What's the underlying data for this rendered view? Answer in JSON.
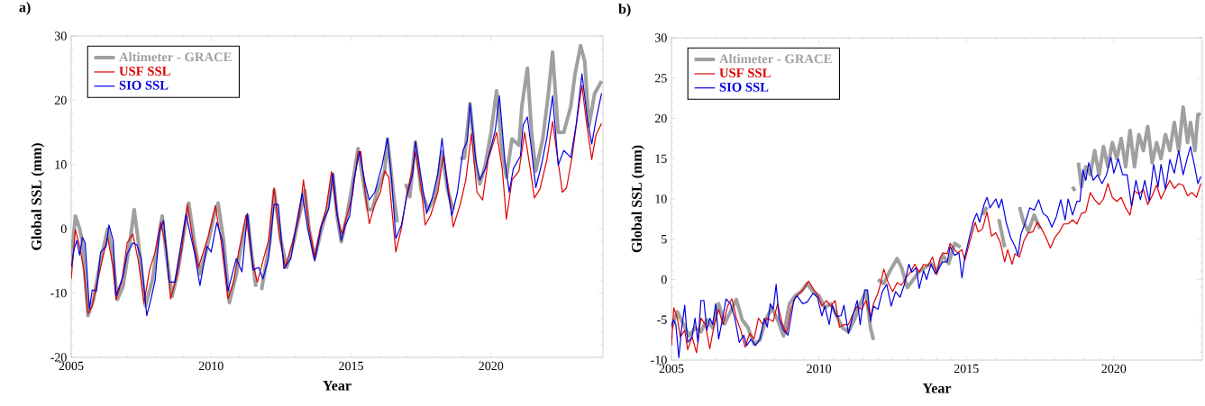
{
  "chart_data": [
    {
      "type": "line",
      "title": "a)",
      "xlabel": "Year",
      "ylabel": "Global SSL (mm)",
      "xlim": [
        2005,
        2024
      ],
      "ylim": [
        -20,
        30
      ],
      "xticks": [
        2005,
        2010,
        2015,
        2020
      ],
      "yticks": [
        -20,
        -10,
        0,
        10,
        20,
        30
      ],
      "legend": "top left",
      "series": [
        {
          "name": "Altimeter - GRACE",
          "color": "#a0a0a0",
          "x": [
            2005.0,
            2005.15,
            2005.3,
            2005.4,
            2005.6,
            2005.8,
            2006.0,
            2006.3,
            2006.45,
            2006.65,
            2006.85,
            2007.1,
            2007.25,
            2007.4,
            2007.65,
            2007.9,
            2008.1,
            2008.25,
            2008.4,
            2008.6,
            2008.8,
            2009.05,
            2009.2,
            2009.4,
            2009.6,
            2009.85,
            2010.1,
            2010.25,
            2010.45,
            2010.65,
            2010.9,
            2011.15,
            2011.3,
            2011.45,
            2011.6,
            2011.7,
            2011.8,
            2011.9,
            2012.1,
            2012.25,
            2012.5,
            2012.7,
            2012.95,
            2013.2,
            2013.35,
            2013.5,
            2013.7,
            2013.95,
            2014.2,
            2014.35,
            2014.5,
            2014.65,
            2014.85,
            2015.05,
            2015.25,
            2015.45,
            2015.6,
            2015.75,
            2015.95,
            2016.2,
            2016.3,
            2016.5,
            2016.65,
            2016.8,
            2016.95,
            2017.1,
            2017.3,
            2017.5,
            2017.75,
            2018.0,
            2018.25,
            2018.45,
            2018.65,
            2018.75,
            2018.9,
            2019.05,
            2019.25,
            2019.45,
            2019.6,
            2019.8,
            2020.0,
            2020.2,
            2020.4,
            2020.55,
            2020.75,
            2021.0,
            2021.1,
            2021.3,
            2021.45,
            2021.6,
            2021.85,
            2022.05,
            2022.2,
            2022.4,
            2022.6,
            2022.85,
            2023.0,
            2023.2,
            2023.35,
            2023.5,
            2023.7,
            2023.95
          ],
          "values": [
            -5,
            2,
            0,
            -2,
            -13.5,
            -11,
            -6,
            0,
            -3,
            -11,
            -9,
            -2,
            3,
            -2,
            -12,
            -8,
            -2,
            2,
            -4,
            -10.5,
            -7,
            0,
            4,
            -2,
            -7,
            -3,
            2,
            4,
            -2,
            -11.5,
            -7,
            -1,
            2,
            -4,
            -9,
            null,
            -9.5,
            -7,
            -2,
            6,
            -2,
            -6,
            -2,
            3,
            6,
            0,
            -4.5,
            0,
            4,
            8.5,
            2,
            -2,
            2,
            7,
            12.5,
            7,
            3,
            3,
            6,
            9,
            14,
            6,
            1,
            null,
            7,
            5,
            13.5,
            6,
            3,
            5,
            12,
            6,
            3,
            null,
            11,
            11,
            19.5,
            10,
            7,
            10,
            15,
            21.5,
            12,
            8,
            14,
            13,
            19,
            25,
            15,
            9,
            14,
            21,
            27.5,
            15,
            15,
            19,
            24,
            28.5,
            26,
            16,
            21,
            23
          ]
        },
        {
          "name": "USF SSL",
          "color": "#e00000",
          "x": [
            2005.0,
            2005.15,
            2005.3,
            2005.45,
            2005.6,
            2005.75,
            2005.9,
            2006.1,
            2006.3,
            2006.5,
            2006.6,
            2006.8,
            2007.0,
            2007.2,
            2007.4,
            2007.6,
            2007.8,
            2008.0,
            2008.2,
            2008.4,
            2008.55,
            2008.75,
            2008.95,
            2009.15,
            2009.35,
            2009.55,
            2009.75,
            2009.9,
            2010.15,
            2010.35,
            2010.6,
            2010.8,
            2011.0,
            2011.25,
            2011.45,
            2011.65,
            2011.85,
            2012.05,
            2012.25,
            2012.45,
            2012.65,
            2012.9,
            2013.15,
            2013.3,
            2013.5,
            2013.7,
            2013.9,
            2014.1,
            2014.3,
            2014.5,
            2014.68,
            2014.85,
            2015.05,
            2015.25,
            2015.35,
            2015.5,
            2015.65,
            2015.85,
            2016.05,
            2016.2,
            2016.35,
            2016.6,
            2016.8,
            2017.0,
            2017.15,
            2017.3,
            2017.5,
            2017.65,
            2017.85,
            2018.1,
            2018.3,
            2018.5,
            2018.65,
            2018.9,
            2019.1,
            2019.3,
            2019.5,
            2019.7,
            2019.9,
            2020.2,
            2020.4,
            2020.55,
            2020.75,
            2021.0,
            2021.2,
            2021.4,
            2021.55,
            2021.75,
            2022.0,
            2022.2,
            2022.4,
            2022.55,
            2022.7,
            2022.9,
            2023.1,
            2023.25,
            2023.4,
            2023.6,
            2023.75,
            2023.95
          ],
          "values": [
            -7.8,
            -0.1,
            -2.7,
            -6.4,
            -13.2,
            -12,
            -8.8,
            -5,
            -1.3,
            -6,
            -11,
            -8.3,
            -2.2,
            -0.8,
            -5,
            -11.6,
            -6.4,
            -3.6,
            1,
            -3.2,
            -10.9,
            -7.8,
            -3.2,
            3.8,
            -1.8,
            -6,
            -3.2,
            -1.1,
            3.6,
            -1.8,
            -10.9,
            -8.3,
            -3.2,
            2.2,
            -4.6,
            -8.3,
            -5,
            -1.8,
            6.4,
            -1.3,
            -6,
            -2.2,
            2,
            7.6,
            0.1,
            -4.3,
            0.1,
            2.9,
            8.9,
            2,
            -0.8,
            2,
            5.2,
            12,
            12,
            5.7,
            0.8,
            3.8,
            5.7,
            9,
            8,
            -3.6,
            0.1,
            5.7,
            8.5,
            12,
            6.6,
            0.6,
            2.2,
            5.7,
            11.5,
            5.7,
            0.3,
            3.8,
            7.6,
            14.8,
            5.7,
            4.5,
            10.8,
            15,
            9.4,
            1.5,
            7.6,
            9,
            15,
            9.4,
            4.8,
            6.2,
            10.8,
            16.7,
            10.4,
            5.7,
            6.4,
            11.3,
            17.9,
            22.3,
            16.9,
            10.8,
            14.6,
            16.4
          ]
        },
        {
          "name": "SIO SSL",
          "color": "#0000e0",
          "x": [
            2005.0,
            2005.1,
            2005.2,
            2005.3,
            2005.4,
            2005.5,
            2005.65,
            2005.75,
            2005.9,
            2006.05,
            2006.25,
            2006.35,
            2006.5,
            2006.6,
            2006.85,
            2007.0,
            2007.2,
            2007.35,
            2007.5,
            2007.7,
            2007.85,
            2008.0,
            2008.15,
            2008.3,
            2008.5,
            2008.7,
            2008.95,
            2009.1,
            2009.4,
            2009.6,
            2009.85,
            2010.0,
            2010.2,
            2010.4,
            2010.6,
            2010.9,
            2011.1,
            2011.3,
            2011.5,
            2011.7,
            2011.85,
            2012.05,
            2012.25,
            2012.4,
            2012.6,
            2012.85,
            2013.1,
            2013.25,
            2013.45,
            2013.7,
            2013.95,
            2014.2,
            2014.35,
            2014.5,
            2014.65,
            2014.8,
            2014.95,
            2015.1,
            2015.3,
            2015.5,
            2015.65,
            2015.85,
            2016.1,
            2016.3,
            2016.45,
            2016.6,
            2016.8,
            2017.0,
            2017.2,
            2017.3,
            2017.55,
            2017.7,
            2017.9,
            2018.1,
            2018.25,
            2018.45,
            2018.6,
            2018.8,
            2019.0,
            2019.15,
            2019.25,
            2019.45,
            2019.6,
            2019.8,
            2020.0,
            2020.15,
            2020.3,
            2020.5,
            2020.65,
            2020.8,
            2021.05,
            2021.15,
            2021.3,
            2021.45,
            2021.6,
            2021.8,
            2022.0,
            2022.2,
            2022.4,
            2022.6,
            2022.85,
            2023.05,
            2023.25,
            2023.45,
            2023.6,
            2023.75,
            2023.95
          ],
          "values": [
            -6,
            -3.2,
            -1.8,
            -4.1,
            -1.3,
            -2.2,
            -12.5,
            -9.5,
            -9.7,
            -3.6,
            -2.7,
            0.6,
            -1.8,
            -10.4,
            -7.4,
            -3.9,
            -2.2,
            -2.5,
            -4.6,
            -13.5,
            -10.9,
            -8,
            -0.4,
            1.3,
            -8.3,
            -8.3,
            -1.8,
            2.2,
            -3.6,
            -8.8,
            -2.7,
            -3.6,
            1,
            -1.8,
            -9.7,
            -4.6,
            -6.7,
            2.4,
            -6.4,
            -6,
            -7.8,
            -4.6,
            3.8,
            3.8,
            -6.2,
            -4.6,
            2,
            5.5,
            0.1,
            -5,
            0.6,
            3.1,
            8.6,
            2.4,
            -1.8,
            0.6,
            2,
            7.6,
            12,
            7.1,
            4.5,
            5.7,
            9.7,
            14.1,
            7.6,
            -1.5,
            0.6,
            5.2,
            8.5,
            13.6,
            6.6,
            2.4,
            4.8,
            8.5,
            14.1,
            6.2,
            2,
            5.7,
            12.2,
            13.6,
            19.5,
            10.8,
            7.6,
            9.4,
            12.7,
            15.3,
            20.7,
            10.4,
            5.7,
            9.4,
            11.3,
            16.2,
            17.4,
            12.2,
            6.4,
            9.9,
            14.3,
            20.7,
            9.9,
            12.2,
            11.1,
            16.4,
            24.1,
            16.9,
            13.2,
            16.9,
            21.1
          ]
        }
      ]
    },
    {
      "type": "line",
      "title": "b)",
      "xlabel": "Year",
      "ylabel": "Global SSL (mm)",
      "xlim": [
        2005,
        2023
      ],
      "ylim": [
        -10,
        30
      ],
      "xticks": [
        2005,
        2010,
        2015,
        2020
      ],
      "yticks": [
        -10,
        -5,
        0,
        5,
        10,
        15,
        20,
        25,
        30
      ],
      "legend": "top left",
      "series": [
        {
          "name": "Altimeter - GRACE",
          "color": "#a0a0a0",
          "x": [
            2005.0,
            2005.2,
            2005.4,
            2005.6,
            2005.8,
            2006.0,
            2006.2,
            2006.4,
            2006.6,
            2006.8,
            2007.0,
            2007.2,
            2007.4,
            2007.6,
            2007.8,
            2008.0,
            2008.2,
            2008.4,
            2008.6,
            2008.8,
            2009.0,
            2009.2,
            2009.4,
            2009.6,
            2009.8,
            2010.0,
            2010.2,
            2010.4,
            2010.6,
            2010.8,
            2011.0,
            2011.2,
            2011.4,
            2011.6,
            2011.75,
            2011.85,
            2011.92,
            2012.0,
            2012.2,
            2012.4,
            2012.65,
            2012.8,
            2013.0,
            2013.2,
            2013.4,
            2013.6,
            2013.8,
            2014.0,
            2014.2,
            2014.4,
            2014.6,
            2014.8,
            2015.2,
            2015.55,
            2015.7,
            2015.9,
            2016.1,
            2016.3,
            2016.5,
            2016.8,
            2016.95,
            2017.1,
            2017.3,
            2017.5,
            2017.6,
            2018.6,
            2018.68,
            2018.74,
            2018.8,
            2018.9,
            2019.05,
            2019.2,
            2019.35,
            2019.5,
            2019.65,
            2019.8,
            2019.95,
            2020.1,
            2020.25,
            2020.4,
            2020.55,
            2020.7,
            2020.85,
            2021.0,
            2021.15,
            2021.3,
            2021.45,
            2021.6,
            2021.75,
            2021.9,
            2022.05,
            2022.2,
            2022.35,
            2022.5,
            2022.6,
            2022.75,
            2022.85,
            2022.95
          ],
          "values": [
            -6,
            -4,
            -5.5,
            -7,
            -6,
            -6.5,
            -5,
            -6,
            -3,
            -5.5,
            -4,
            -2.5,
            -5,
            -6,
            -8,
            -7.5,
            -5,
            -3.5,
            -5,
            -7,
            -3,
            -2,
            -1.5,
            -0.5,
            -1.5,
            -2,
            -3.5,
            -3,
            -4.5,
            -6,
            -6.5,
            -5,
            -3,
            -1.5,
            -6,
            -7.5,
            null,
            0,
            -0.5,
            1,
            2.6,
            1.5,
            -1,
            0,
            1,
            1.5,
            2,
            1,
            3,
            2,
            4.5,
            4,
            null,
            8,
            9,
            null,
            7.5,
            4,
            null,
            9,
            7,
            6,
            8,
            6.3,
            null,
            11.5,
            11,
            null,
            14.5,
            11.5,
            14,
            13,
            16,
            13,
            16.5,
            14,
            17,
            15,
            17.5,
            14,
            18.5,
            14,
            18,
            16,
            19,
            14.5,
            17,
            15,
            18,
            16,
            19.5,
            16,
            21.4,
            17,
            19.5,
            16,
            20.5,
            20.5
          ]
        },
        {
          "name": "USF SSL",
          "color": "#e00000",
          "x": [
            2005.0,
            2005.08,
            2005.2,
            2005.3,
            2005.45,
            2005.55,
            2005.7,
            2005.85,
            2006.0,
            2006.15,
            2006.3,
            2006.45,
            2006.6,
            2006.75,
            2006.9,
            2007.05,
            2007.2,
            2007.35,
            2007.5,
            2007.65,
            2007.8,
            2007.95,
            2008.1,
            2008.25,
            2008.45,
            2008.6,
            2008.75,
            2008.9,
            2009.05,
            2009.2,
            2009.35,
            2009.5,
            2009.65,
            2009.8,
            2009.95,
            2010.1,
            2010.25,
            2010.4,
            2010.55,
            2010.7,
            2010.85,
            2011.0,
            2011.15,
            2011.3,
            2011.45,
            2011.6,
            2011.75,
            2011.85,
            2012.0,
            2012.1,
            2012.2,
            2012.35,
            2012.5,
            2012.65,
            2012.8,
            2012.95,
            2013.1,
            2013.25,
            2013.4,
            2013.55,
            2013.7,
            2013.85,
            2014.0,
            2014.1,
            2014.2,
            2014.35,
            2014.45,
            2014.6,
            2014.7,
            2014.85,
            2014.95,
            2015.1,
            2015.3,
            2015.4,
            2015.55,
            2015.7,
            2015.85,
            2016.0,
            2016.15,
            2016.3,
            2016.4,
            2016.55,
            2016.65,
            2016.8,
            2016.95,
            2017.1,
            2017.25,
            2017.4,
            2017.55,
            2017.7,
            2017.85,
            2018.0,
            2018.15,
            2018.3,
            2018.45,
            2018.6,
            2018.75,
            2018.9,
            2019.05,
            2019.2,
            2019.35,
            2019.5,
            2019.65,
            2019.8,
            2019.95,
            2020.1,
            2020.25,
            2020.4,
            2020.55,
            2020.7,
            2020.85,
            2021.0,
            2021.15,
            2021.3,
            2021.45,
            2021.6,
            2021.75,
            2021.9,
            2022.05,
            2022.2,
            2022.35,
            2022.5,
            2022.65,
            2022.8,
            2022.95
          ],
          "values": [
            -8.2,
            -3.5,
            -4.8,
            -7.1,
            -6.3,
            -8.7,
            -7.1,
            -9.1,
            -4.8,
            -5.6,
            -8.6,
            -5.6,
            -3.7,
            -5.6,
            -3.3,
            -2.4,
            -4.8,
            -6.3,
            -8.4,
            -6.7,
            -7.4,
            -4.8,
            -5.6,
            -4.8,
            -5.2,
            -3,
            -5.4,
            -6.7,
            -3.7,
            -2.2,
            -1.7,
            -1.1,
            -0.2,
            -1.1,
            -1.9,
            -3.3,
            -2.6,
            -3.3,
            -2.6,
            -5.9,
            -5.6,
            -5.6,
            -4.3,
            -3.3,
            -3.7,
            -2.6,
            -4.8,
            -3,
            -1.7,
            -0.4,
            1.3,
            -0.4,
            -1.5,
            -0.4,
            -0.7,
            0.2,
            0.9,
            1.9,
            0.9,
            1.9,
            1.7,
            2.8,
            0.6,
            2.6,
            3.3,
            3.2,
            4.5,
            3.7,
            3.3,
            3.7,
            2.4,
            4.5,
            7.1,
            5.9,
            6.3,
            8.4,
            5.4,
            5.8,
            4.6,
            2.2,
            3.7,
            1.9,
            3.2,
            2.8,
            4.8,
            5.8,
            5.9,
            7.1,
            6.3,
            5.2,
            3.9,
            5.2,
            5.9,
            6.9,
            6.9,
            7.4,
            6.9,
            8.2,
            8.4,
            10.8,
            9.9,
            9.3,
            10,
            11.9,
            10.2,
            9.7,
            10.2,
            8.9,
            8,
            11,
            10.6,
            11.2,
            9.3,
            10.4,
            11.7,
            10,
            11.2,
            12.3,
            11.3,
            11.9,
            11.7,
            10.4,
            10.8,
            10.2,
            11.9
          ]
        },
        {
          "name": "SIO SSL",
          "color": "#0000e0",
          "x": [
            2005.0,
            2005.07,
            2005.15,
            2005.25,
            2005.35,
            2005.45,
            2005.55,
            2005.7,
            2005.8,
            2005.9,
            2006.0,
            2006.1,
            2006.2,
            2006.3,
            2006.4,
            2006.5,
            2006.6,
            2006.75,
            2006.85,
            2007.0,
            2007.15,
            2007.3,
            2007.45,
            2007.55,
            2007.7,
            2007.85,
            2008.0,
            2008.15,
            2008.25,
            2008.35,
            2008.45,
            2008.55,
            2008.65,
            2008.8,
            2008.95,
            2009.15,
            2009.25,
            2009.45,
            2009.6,
            2009.8,
            2009.95,
            2010.1,
            2010.2,
            2010.35,
            2010.45,
            2010.6,
            2010.75,
            2010.85,
            2011.0,
            2011.15,
            2011.3,
            2011.4,
            2011.55,
            2011.65,
            2011.75,
            2011.85,
            2012.0,
            2012.15,
            2012.3,
            2012.45,
            2012.6,
            2012.75,
            2012.9,
            2013.05,
            2013.15,
            2013.3,
            2013.4,
            2013.55,
            2013.65,
            2013.8,
            2013.95,
            2014.05,
            2014.2,
            2014.35,
            2014.45,
            2014.6,
            2014.75,
            2014.85,
            2014.95,
            2015.1,
            2015.25,
            2015.35,
            2015.45,
            2015.6,
            2015.7,
            2015.8,
            2016.0,
            2016.1,
            2016.2,
            2016.35,
            2016.5,
            2016.65,
            2016.75,
            2016.85,
            2017.0,
            2017.15,
            2017.3,
            2017.45,
            2017.6,
            2017.75,
            2017.9,
            2018.05,
            2018.2,
            2018.35,
            2018.45,
            2018.6,
            2018.75,
            2018.85,
            2018.95,
            2019.05,
            2019.15,
            2019.3,
            2019.45,
            2019.6,
            2019.75,
            2019.9,
            2020.0,
            2020.15,
            2020.3,
            2020.45,
            2020.6,
            2020.75,
            2020.9,
            2021.05,
            2021.2,
            2021.35,
            2021.5,
            2021.6,
            2021.75,
            2021.9,
            2022.05,
            2022.2,
            2022.35,
            2022.5,
            2022.6,
            2022.75,
            2022.85,
            2022.95
          ],
          "values": [
            -5.8,
            -5,
            -5.6,
            -9.7,
            -5.9,
            -3.2,
            -7.8,
            -7.1,
            -4.8,
            -7.8,
            -2.6,
            -2.6,
            -6.3,
            -4.8,
            -5.6,
            -3,
            -7.4,
            -4.5,
            -2.4,
            -3,
            -4.8,
            -7.8,
            -6.9,
            -8.2,
            -7.4,
            -8.2,
            -7.4,
            -4.8,
            -5.9,
            -3,
            -3.7,
            -0.6,
            -4.8,
            -6.3,
            -6.9,
            -2.6,
            -2,
            -3,
            -2.8,
            -1.7,
            -2.2,
            -4.5,
            -3.3,
            -5.6,
            -3.2,
            -4.6,
            -4.5,
            -3.2,
            -6.7,
            -4.5,
            -2.6,
            -5.6,
            -1.3,
            -1.3,
            -5.2,
            -3.3,
            -3.7,
            -1.5,
            -0.6,
            -3.3,
            -1.5,
            -2.2,
            -0.6,
            1.9,
            0.9,
            1.5,
            -1.1,
            1.1,
            0,
            1.9,
            0.7,
            1.3,
            2.2,
            2.2,
            4.1,
            3,
            3.3,
            0.2,
            2.8,
            5.2,
            7.4,
            8.2,
            7.1,
            9.3,
            10.2,
            8.9,
            10,
            8.9,
            10,
            7.1,
            5.2,
            4.1,
            3,
            5.6,
            7.1,
            8.9,
            8.6,
            9.9,
            8.2,
            7.8,
            6.5,
            7.8,
            9.9,
            7.4,
            10,
            8,
            9.7,
            9.7,
            13.6,
            12.3,
            14.5,
            12.3,
            13,
            11.9,
            13,
            15.2,
            13.2,
            15,
            13,
            13,
            9.1,
            12.3,
            9.9,
            12.3,
            9.7,
            14.3,
            11.5,
            14.3,
            11.2,
            14.9,
            13.2,
            16,
            13,
            15.2,
            16.5,
            13.9,
            11.9,
            12.8
          ]
        }
      ]
    }
  ]
}
